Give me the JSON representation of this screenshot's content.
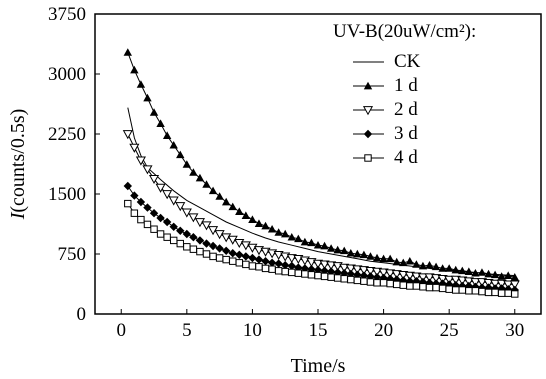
{
  "chart_data": {
    "type": "line",
    "xlabel": "Time/s",
    "ylabel_italic": "I",
    "ylabel_rest": "(counts/0.5s)",
    "xlim": [
      -2,
      32
    ],
    "ylim": [
      0,
      3750
    ],
    "xticks": [
      0,
      5,
      10,
      15,
      20,
      25,
      30
    ],
    "yticks": [
      0,
      750,
      1500,
      2250,
      3000,
      3750
    ],
    "grid": false,
    "legend_position": "top-right",
    "legend_title": "UV-B(20uW/cm²):",
    "series": [
      {
        "name": "CK",
        "marker": "none",
        "x": [
          0.5,
          1,
          1.5,
          2,
          3,
          4,
          5,
          6,
          7,
          8,
          9,
          10,
          11,
          12,
          13,
          14,
          15,
          16,
          17,
          18,
          19,
          20,
          21,
          22,
          23,
          24,
          25,
          26,
          27,
          28,
          29,
          30
        ],
        "values": [
          2580,
          2200,
          1980,
          1830,
          1680,
          1540,
          1420,
          1330,
          1240,
          1150,
          1080,
          1010,
          950,
          900,
          860,
          820,
          780,
          750,
          720,
          690,
          660,
          640,
          620,
          600,
          580,
          560,
          550,
          530,
          520,
          500,
          490,
          480
        ]
      },
      {
        "name": "1 d",
        "marker": "filled-triangle",
        "x": [
          0.5,
          1,
          1.5,
          2,
          2.5,
          3,
          3.5,
          4,
          4.5,
          5,
          5.5,
          6,
          6.5,
          7,
          7.5,
          8,
          8.5,
          9,
          9.5,
          10,
          10.5,
          11,
          11.5,
          12,
          12.5,
          13,
          13.5,
          14,
          14.5,
          15,
          15.5,
          16,
          16.5,
          17,
          17.5,
          18,
          18.5,
          19,
          19.5,
          20,
          20.5,
          21,
          21.5,
          22,
          22.5,
          23,
          23.5,
          24,
          24.5,
          25,
          25.5,
          26,
          26.5,
          27,
          27.5,
          28,
          28.5,
          29,
          29.5,
          30
        ],
        "values": [
          3270,
          3050,
          2870,
          2700,
          2520,
          2380,
          2230,
          2110,
          1990,
          1870,
          1770,
          1700,
          1620,
          1540,
          1470,
          1400,
          1340,
          1280,
          1230,
          1180,
          1130,
          1100,
          1060,
          1020,
          1000,
          960,
          940,
          900,
          890,
          860,
          850,
          820,
          800,
          790,
          760,
          750,
          740,
          720,
          700,
          690,
          690,
          650,
          640,
          660,
          620,
          600,
          610,
          590,
          570,
          570,
          550,
          540,
          530,
          510,
          520,
          500,
          490,
          470,
          480,
          460
        ]
      },
      {
        "name": "2 d",
        "marker": "open-triangle-down",
        "x": [
          0.5,
          1,
          1.5,
          2,
          2.5,
          3,
          3.5,
          4,
          4.5,
          5,
          5.5,
          6,
          6.5,
          7,
          7.5,
          8,
          8.5,
          9,
          9.5,
          10,
          10.5,
          11,
          11.5,
          12,
          12.5,
          13,
          13.5,
          14,
          14.5,
          15,
          15.5,
          16,
          16.5,
          17,
          17.5,
          18,
          18.5,
          19,
          19.5,
          20,
          20.5,
          21,
          21.5,
          22,
          22.5,
          23,
          23.5,
          24,
          24.5,
          25,
          25.5,
          26,
          26.5,
          27,
          27.5,
          28,
          28.5,
          29,
          29.5,
          30
        ],
        "values": [
          2250,
          2080,
          1920,
          1810,
          1690,
          1580,
          1500,
          1420,
          1350,
          1270,
          1210,
          1150,
          1110,
          1050,
          1000,
          960,
          930,
          890,
          860,
          830,
          800,
          780,
          760,
          740,
          720,
          700,
          690,
          670,
          650,
          630,
          620,
          610,
          600,
          580,
          570,
          560,
          550,
          540,
          530,
          520,
          510,
          500,
          490,
          480,
          470,
          460,
          460,
          450,
          440,
          430,
          430,
          420,
          410,
          400,
          400,
          390,
          380,
          380,
          370,
          370
        ]
      },
      {
        "name": "3 d",
        "marker": "filled-diamond",
        "x": [
          0.5,
          1,
          1.5,
          2,
          2.5,
          3,
          3.5,
          4,
          4.5,
          5,
          5.5,
          6,
          6.5,
          7,
          7.5,
          8,
          8.5,
          9,
          9.5,
          10,
          10.5,
          11,
          11.5,
          12,
          12.5,
          13,
          13.5,
          14,
          14.5,
          15,
          15.5,
          16,
          16.5,
          17,
          17.5,
          18,
          18.5,
          19,
          19.5,
          20,
          20.5,
          21,
          21.5,
          22,
          22.5,
          23,
          23.5,
          24,
          24.5,
          25,
          25.5,
          26,
          26.5,
          27,
          27.5,
          28,
          28.5,
          29,
          29.5,
          30
        ],
        "values": [
          1600,
          1480,
          1400,
          1330,
          1260,
          1200,
          1150,
          1090,
          1040,
          1000,
          960,
          920,
          880,
          850,
          820,
          790,
          760,
          740,
          720,
          700,
          680,
          660,
          640,
          630,
          610,
          600,
          580,
          570,
          560,
          550,
          540,
          530,
          520,
          510,
          500,
          490,
          480,
          470,
          460,
          450,
          440,
          430,
          420,
          410,
          410,
          400,
          390,
          380,
          380,
          370,
          360,
          350,
          350,
          340,
          330,
          330,
          320,
          320,
          310,
          300
        ]
      },
      {
        "name": "4 d",
        "marker": "open-square",
        "x": [
          0.5,
          1,
          1.5,
          2,
          2.5,
          3,
          3.5,
          4,
          4.5,
          5,
          5.5,
          6,
          6.5,
          7,
          7.5,
          8,
          8.5,
          9,
          9.5,
          10,
          10.5,
          11,
          11.5,
          12,
          12.5,
          13,
          13.5,
          14,
          14.5,
          15,
          15.5,
          16,
          16.5,
          17,
          17.5,
          18,
          18.5,
          19,
          19.5,
          20,
          20.5,
          21,
          21.5,
          22,
          22.5,
          23,
          23.5,
          24,
          24.5,
          25,
          25.5,
          26,
          26.5,
          27,
          27.5,
          28,
          28.5,
          29,
          29.5,
          30
        ],
        "values": [
          1380,
          1260,
          1180,
          1120,
          1060,
          1000,
          960,
          920,
          880,
          840,
          810,
          780,
          750,
          720,
          700,
          680,
          660,
          640,
          620,
          600,
          590,
          570,
          560,
          540,
          530,
          520,
          510,
          500,
          490,
          480,
          470,
          460,
          450,
          440,
          430,
          420,
          410,
          400,
          390,
          390,
          380,
          370,
          360,
          350,
          350,
          340,
          330,
          330,
          320,
          310,
          300,
          300,
          290,
          290,
          280,
          270,
          270,
          260,
          260,
          250
        ]
      }
    ]
  }
}
